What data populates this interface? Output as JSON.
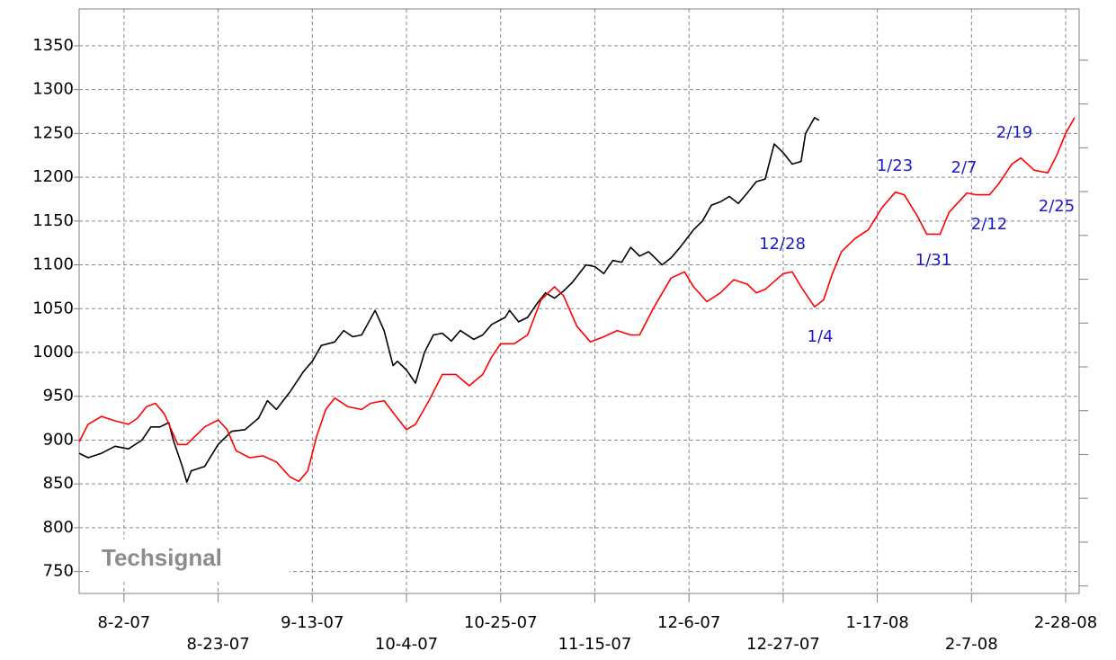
{
  "chart_data": {
    "type": "line",
    "watermark": "Techsignal",
    "xlim": [
      "2007-07-23",
      "2008-03-02"
    ],
    "xticks": [
      {
        "value": "2007-08-02",
        "label": "8-2-07"
      },
      {
        "value": "2007-08-23",
        "label": "8-23-07"
      },
      {
        "value": "2007-09-13",
        "label": "9-13-07"
      },
      {
        "value": "2007-10-04",
        "label": "10-4-07"
      },
      {
        "value": "2007-10-25",
        "label": "10-25-07"
      },
      {
        "value": "2007-11-15",
        "label": "11-15-07"
      },
      {
        "value": "2007-12-06",
        "label": "12-6-07"
      },
      {
        "value": "2007-12-27",
        "label": "12-27-07"
      },
      {
        "value": "2008-01-17",
        "label": "1-17-08"
      },
      {
        "value": "2008-02-07",
        "label": "2-7-08"
      },
      {
        "value": "2008-02-28",
        "label": "2-28-08"
      }
    ],
    "ylim": [
      725,
      1392
    ],
    "yticks": [
      750,
      800,
      850,
      900,
      950,
      1000,
      1050,
      1100,
      1150,
      1200,
      1250,
      1300,
      1350
    ],
    "grid": true,
    "annotations": [
      "12/28",
      "1/4",
      "1/23",
      "1/31",
      "2/7",
      "2/12",
      "2/19",
      "2/25"
    ],
    "series": [
      {
        "color": "#000000",
        "x": [
          "2007-07-23",
          "2007-07-25",
          "2007-07-28",
          "2007-07-31",
          "2007-08-03",
          "2007-08-06",
          "2007-08-08",
          "2007-08-10",
          "2007-08-12",
          "2007-08-13",
          "2007-08-15",
          "2007-08-16",
          "2007-08-17",
          "2007-08-20",
          "2007-08-23",
          "2007-08-26",
          "2007-08-29",
          "2007-09-01",
          "2007-09-03",
          "2007-09-05",
          "2007-09-08",
          "2007-09-11",
          "2007-09-13",
          "2007-09-15",
          "2007-09-18",
          "2007-09-20",
          "2007-09-22",
          "2007-09-24",
          "2007-09-27",
          "2007-09-29",
          "2007-10-01",
          "2007-10-02",
          "2007-10-04",
          "2007-10-06",
          "2007-10-08",
          "2007-10-10",
          "2007-10-12",
          "2007-10-14",
          "2007-10-16",
          "2007-10-19",
          "2007-10-21",
          "2007-10-23",
          "2007-10-26",
          "2007-10-27",
          "2007-10-29",
          "2007-10-31",
          "2007-11-02",
          "2007-11-04",
          "2007-11-06",
          "2007-11-08",
          "2007-11-10",
          "2007-11-13",
          "2007-11-15",
          "2007-11-17",
          "2007-11-19",
          "2007-11-21",
          "2007-11-23",
          "2007-11-25",
          "2007-11-27",
          "2007-11-30",
          "2007-12-02",
          "2007-12-04",
          "2007-12-07",
          "2007-12-09",
          "2007-12-11",
          "2007-12-13",
          "2007-12-15",
          "2007-12-17",
          "2007-12-19",
          "2007-12-21",
          "2007-12-23",
          "2007-12-25",
          "2007-12-27",
          "2007-12-29",
          "2007-12-31",
          "2008-01-01",
          "2008-01-03",
          "2008-01-04"
        ],
        "values": [
          885,
          880,
          885,
          893,
          890,
          900,
          915,
          915,
          920,
          900,
          870,
          852,
          865,
          870,
          895,
          910,
          912,
          925,
          945,
          935,
          955,
          978,
          990,
          1008,
          1012,
          1025,
          1018,
          1020,
          1048,
          1025,
          985,
          990,
          980,
          965,
          1000,
          1020,
          1022,
          1013,
          1025,
          1015,
          1020,
          1032,
          1040,
          1048,
          1035,
          1040,
          1055,
          1068,
          1062,
          1070,
          1080,
          1100,
          1098,
          1090,
          1105,
          1103,
          1120,
          1110,
          1115,
          1100,
          1108,
          1120,
          1140,
          1150,
          1168,
          1172,
          1178,
          1170,
          1182,
          1195,
          1198,
          1238,
          1228,
          1215,
          1218,
          1250,
          1268,
          1265
        ]
      },
      {
        "color": "#ff0000",
        "x": [
          "2007-07-23",
          "2007-07-25",
          "2007-07-28",
          "2007-07-31",
          "2007-08-03",
          "2007-08-05",
          "2007-08-07",
          "2007-08-09",
          "2007-08-11",
          "2007-08-14",
          "2007-08-16",
          "2007-08-20",
          "2007-08-23",
          "2007-08-25",
          "2007-08-27",
          "2007-08-30",
          "2007-09-02",
          "2007-09-05",
          "2007-09-08",
          "2007-09-10",
          "2007-09-12",
          "2007-09-14",
          "2007-09-16",
          "2007-09-18",
          "2007-09-21",
          "2007-09-24",
          "2007-09-26",
          "2007-09-29",
          "2007-10-02",
          "2007-10-04",
          "2007-10-06",
          "2007-10-09",
          "2007-10-12",
          "2007-10-15",
          "2007-10-18",
          "2007-10-21",
          "2007-10-23",
          "2007-10-25",
          "2007-10-28",
          "2007-10-31",
          "2007-11-03",
          "2007-11-06",
          "2007-11-08",
          "2007-11-11",
          "2007-11-14",
          "2007-11-17",
          "2007-11-20",
          "2007-11-23",
          "2007-11-25",
          "2007-11-28",
          "2007-12-02",
          "2007-12-05",
          "2007-12-07",
          "2007-12-10",
          "2007-12-13",
          "2007-12-16",
          "2007-12-19",
          "2007-12-21",
          "2007-12-23",
          "2007-12-27",
          "2007-12-29",
          "2007-12-31",
          "2008-01-03",
          "2008-01-05",
          "2008-01-07",
          "2008-01-09",
          "2008-01-12",
          "2008-01-15",
          "2008-01-18",
          "2008-01-21",
          "2008-01-23",
          "2008-01-26",
          "2008-01-28",
          "2008-01-31",
          "2008-02-02",
          "2008-02-06",
          "2008-02-08",
          "2008-02-11",
          "2008-02-13",
          "2008-02-16",
          "2008-02-18",
          "2008-02-21",
          "2008-02-24",
          "2008-02-26",
          "2008-02-28",
          "2008-03-01"
        ],
        "values": [
          898,
          918,
          927,
          922,
          918,
          925,
          938,
          942,
          930,
          895,
          895,
          915,
          923,
          912,
          888,
          880,
          882,
          875,
          858,
          853,
          865,
          905,
          935,
          948,
          938,
          935,
          942,
          945,
          925,
          912,
          918,
          945,
          975,
          975,
          962,
          975,
          995,
          1010,
          1010,
          1020,
          1060,
          1075,
          1065,
          1030,
          1012,
          1018,
          1025,
          1020,
          1020,
          1050,
          1085,
          1092,
          1075,
          1058,
          1068,
          1083,
          1078,
          1068,
          1072,
          1090,
          1092,
          1075,
          1052,
          1060,
          1090,
          1115,
          1130,
          1140,
          1165,
          1183,
          1180,
          1155,
          1135,
          1135,
          1160,
          1182,
          1180,
          1180,
          1192,
          1215,
          1222,
          1208,
          1205,
          1225,
          1250,
          1268
        ]
      }
    ]
  }
}
